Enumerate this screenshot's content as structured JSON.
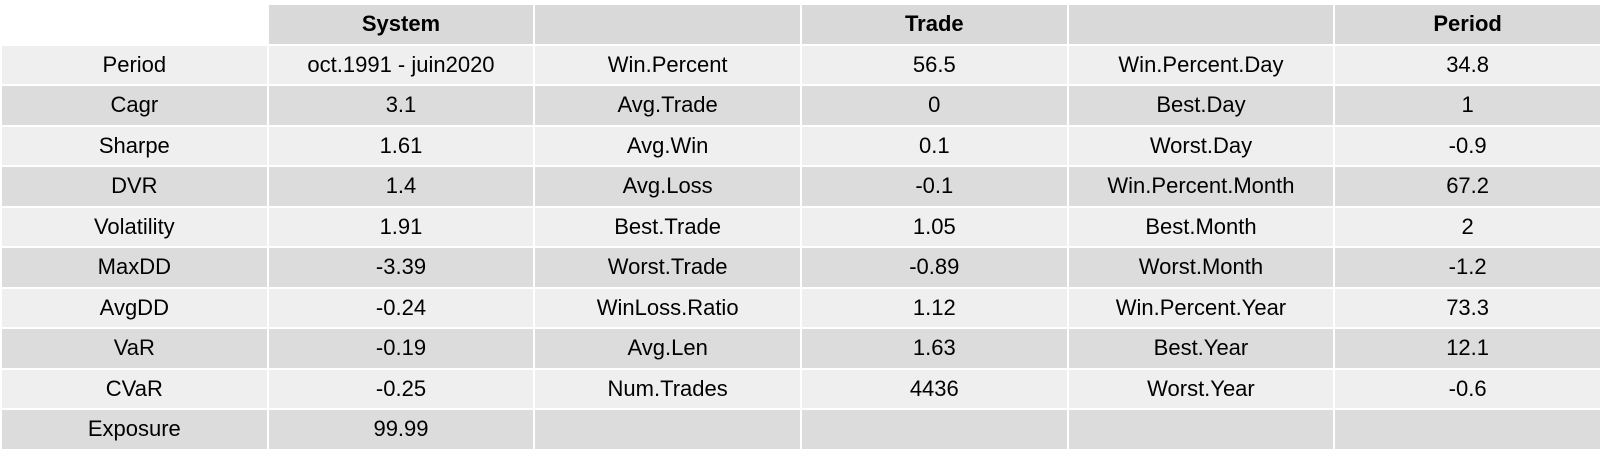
{
  "table": {
    "headers": [
      "",
      "System",
      "",
      "Trade",
      "",
      "Period"
    ],
    "rows": [
      [
        "Period",
        "oct.1991 - juin2020",
        "Win.Percent",
        "56.5",
        "Win.Percent.Day",
        "34.8"
      ],
      [
        "Cagr",
        "3.1",
        "Avg.Trade",
        "0",
        "Best.Day",
        "1"
      ],
      [
        "Sharpe",
        "1.61",
        "Avg.Win",
        "0.1",
        "Worst.Day",
        "-0.9"
      ],
      [
        "DVR",
        "1.4",
        "Avg.Loss",
        "-0.1",
        "Win.Percent.Month",
        "67.2"
      ],
      [
        "Volatility",
        "1.91",
        "Best.Trade",
        "1.05",
        "Best.Month",
        "2"
      ],
      [
        "MaxDD",
        "-3.39",
        "Worst.Trade",
        "-0.89",
        "Worst.Month",
        "-1.2"
      ],
      [
        "AvgDD",
        "-0.24",
        "WinLoss.Ratio",
        "1.12",
        "Win.Percent.Year",
        "73.3"
      ],
      [
        "VaR",
        "-0.19",
        "Avg.Len",
        "1.63",
        "Best.Year",
        "12.1"
      ],
      [
        "CVaR",
        "-0.25",
        "Num.Trades",
        "4436",
        "Worst.Year",
        "-0.6"
      ],
      [
        "Exposure",
        "99.99",
        "",
        "",
        "",
        ""
      ]
    ]
  }
}
